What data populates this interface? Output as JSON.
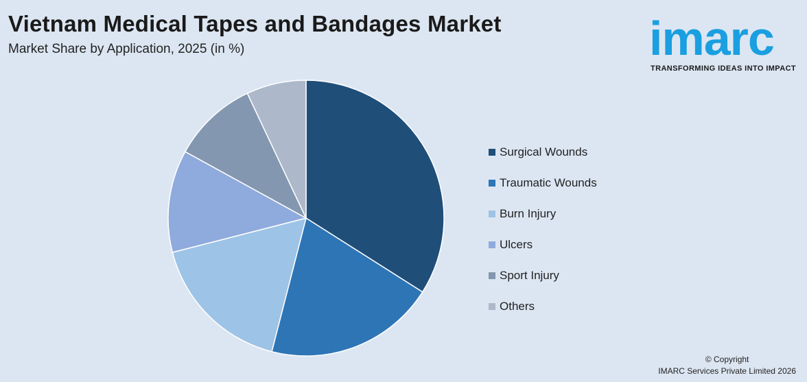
{
  "header": {
    "title": "Vietnam Medical Tapes and Bandages Market",
    "subtitle": "Market Share by Application, 2025 (in %)"
  },
  "logo": {
    "word": "imarc",
    "tagline": "TRANSFORMING IDEAS INTO IMPACT",
    "color": "#1a9fe0"
  },
  "footer": {
    "copyright_line1": "© Copyright",
    "copyright_line2": "IMARC Services Private Limited 2026"
  },
  "chart_data": {
    "type": "pie",
    "categories": [
      "Surgical Wounds",
      "Traumatic Wounds",
      "Burn Injury",
      "Ulcers",
      "Sport Injury",
      "Others"
    ],
    "values": [
      34,
      20,
      17,
      12,
      10,
      7
    ],
    "colors": [
      "#1f4e79",
      "#2e75b6",
      "#9dc3e6",
      "#8faadc",
      "#8497b0",
      "#adb9ca"
    ],
    "legend_position": "right"
  }
}
